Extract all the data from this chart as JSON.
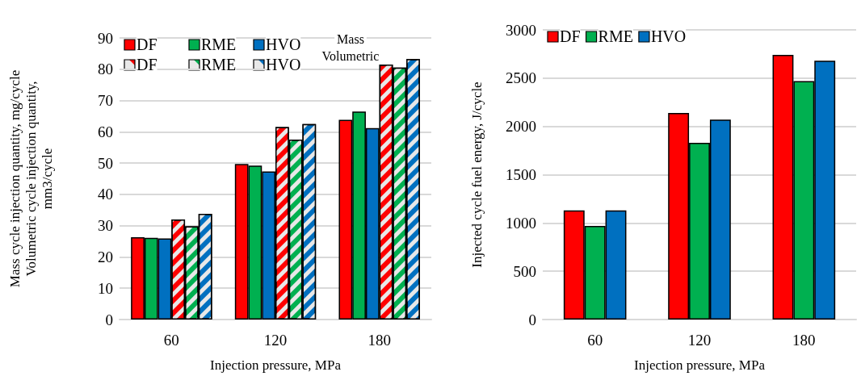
{
  "chart_data": [
    {
      "type": "bar",
      "xlabel": "Injection pressure, MPa",
      "ylabel": "Mass cycle injection quantity, mg/cycle\nVolumetric cycle injection quantity,\nmm3/cycle",
      "categories": [
        "60",
        "120",
        "180"
      ],
      "series": [
        {
          "name": "DF",
          "color": "#ff0000",
          "values": [
            26.3,
            49.7,
            63.8
          ]
        },
        {
          "name": "RME",
          "color": "#00b050",
          "values": [
            26.1,
            49.2,
            66.5
          ]
        },
        {
          "name": "HVO",
          "color": "#0070c0",
          "values": [
            25.9,
            47.3,
            61.2
          ]
        },
        {
          "name": "DF",
          "color": "#ff0000",
          "values": [
            32.0,
            61.5,
            81.5
          ]
        },
        {
          "name": "RME",
          "color": "#00b050",
          "values": [
            29.8,
            57.5,
            80.5
          ]
        },
        {
          "name": "HVO",
          "color": "#0070c0",
          "values": [
            33.8,
            62.5,
            83.2
          ]
        }
      ],
      "annotations": [
        "Mass",
        "Volumetric"
      ],
      "ylim": [
        0,
        90
      ],
      "yticks": [
        0,
        10,
        20,
        30,
        40,
        50,
        60,
        70,
        80,
        90
      ],
      "grid": "y",
      "legend": "top left"
    },
    {
      "type": "bar",
      "xlabel": "Injection pressure, MPa",
      "ylabel": "Injected cycle fuel energy, J/cycle",
      "categories": [
        "60",
        "120",
        "180"
      ],
      "series": [
        {
          "name": "DF",
          "color": "#ff0000",
          "values": [
            1130,
            2140,
            2740
          ]
        },
        {
          "name": "RME",
          "color": "#00b050",
          "values": [
            970,
            1830,
            2470
          ]
        },
        {
          "name": "HVO",
          "color": "#0070c0",
          "values": [
            1130,
            2070,
            2680
          ]
        }
      ],
      "ylim": [
        0,
        3000
      ],
      "yticks": [
        0,
        500,
        1000,
        1500,
        2000,
        2500,
        3000
      ],
      "grid": "y",
      "legend": "top left"
    }
  ]
}
